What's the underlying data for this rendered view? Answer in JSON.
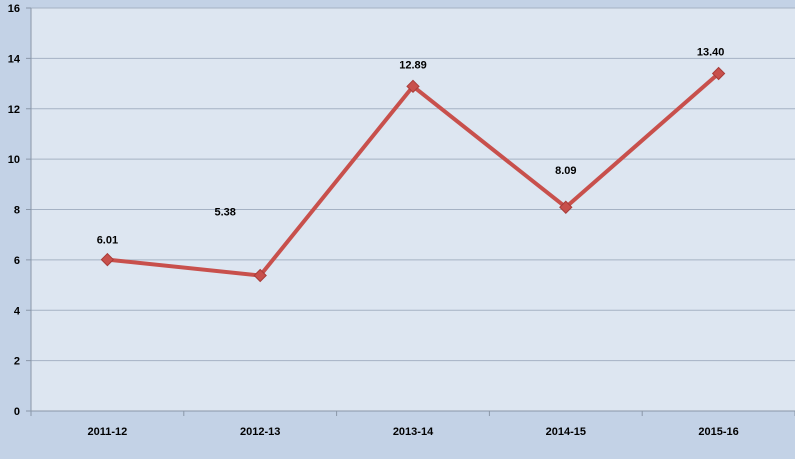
{
  "colors": {
    "page_background": "#c3d2e6",
    "plot_background": "#dde6f1",
    "gridline": "#a5b2c4",
    "line": "#c8504c",
    "marker": "#c8504c"
  },
  "chart_data": {
    "type": "line",
    "categories": [
      "2011-12",
      "2012-13",
      "2013-14",
      "2014-15",
      "2015-16"
    ],
    "values": [
      6.01,
      5.38,
      12.89,
      8.09,
      13.4
    ],
    "data_labels": [
      "6.01",
      "5.38",
      "12.89",
      "8.09",
      "13.40"
    ],
    "title": "",
    "xlabel": "",
    "ylabel": "",
    "ylim": [
      0,
      16
    ],
    "yticks": [
      0,
      2,
      4,
      6,
      8,
      10,
      12,
      14,
      16
    ],
    "grid": true,
    "marker": "diamond",
    "legend": "none"
  }
}
